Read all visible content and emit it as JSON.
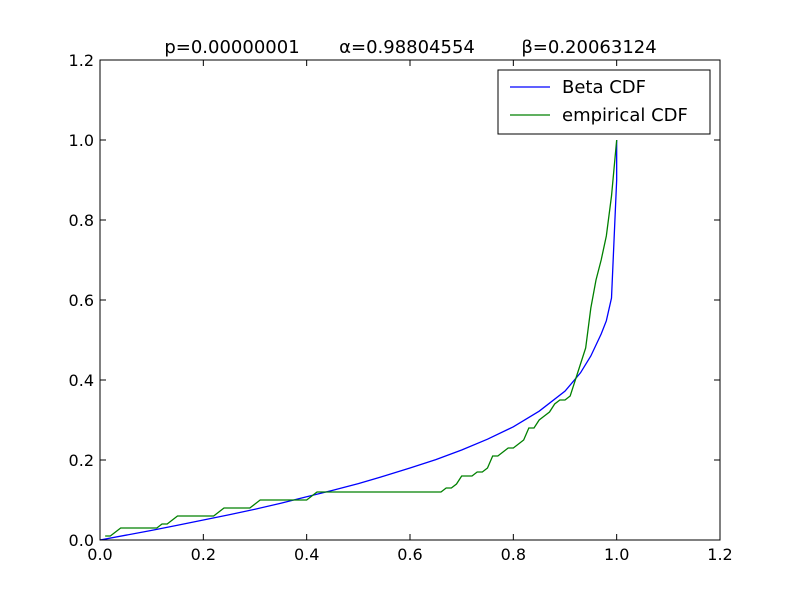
{
  "chart_data": {
    "type": "line",
    "title_parts": [
      "p=0.00000001",
      "α=0.98804554",
      "β=0.20063124"
    ],
    "xlabel": "",
    "ylabel": "",
    "xlim": [
      0.0,
      1.2
    ],
    "ylim": [
      0.0,
      1.2
    ],
    "x_ticks": [
      0.0,
      0.2,
      0.4,
      0.6,
      0.8,
      1.0,
      1.2
    ],
    "x_tick_labels": [
      "0.0",
      "0.2",
      "0.4",
      "0.6",
      "0.8",
      "1.0",
      "1.2"
    ],
    "y_ticks": [
      0.0,
      0.2,
      0.4,
      0.6,
      0.8,
      1.0,
      1.2
    ],
    "y_tick_labels": [
      "0.0",
      "0.2",
      "0.4",
      "0.6",
      "0.8",
      "1.0",
      "1.2"
    ],
    "grid": false,
    "legend_position": "top-right",
    "series": [
      {
        "name": "Beta CDF",
        "color": "#0000ff",
        "x": [
          0.0,
          0.05,
          0.1,
          0.15,
          0.2,
          0.25,
          0.3,
          0.35,
          0.4,
          0.45,
          0.5,
          0.55,
          0.6,
          0.65,
          0.7,
          0.75,
          0.8,
          0.85,
          0.9,
          0.93,
          0.95,
          0.97,
          0.98,
          0.99,
          1.0,
          1.0
        ],
        "y": [
          0.0,
          0.012,
          0.024,
          0.037,
          0.05,
          0.063,
          0.077,
          0.092,
          0.108,
          0.124,
          0.141,
          0.16,
          0.18,
          0.201,
          0.225,
          0.252,
          0.283,
          0.322,
          0.372,
          0.418,
          0.46,
          0.515,
          0.548,
          0.605,
          0.9,
          1.0
        ]
      },
      {
        "name": "empirical CDF",
        "color": "#008000",
        "x": [
          0.01,
          0.02,
          0.03,
          0.04,
          0.11,
          0.12,
          0.13,
          0.14,
          0.15,
          0.22,
          0.23,
          0.24,
          0.29,
          0.3,
          0.31,
          0.4,
          0.41,
          0.42,
          0.66,
          0.67,
          0.68,
          0.69,
          0.7,
          0.71,
          0.72,
          0.73,
          0.74,
          0.75,
          0.76,
          0.77,
          0.78,
          0.79,
          0.8,
          0.81,
          0.82,
          0.83,
          0.84,
          0.85,
          0.86,
          0.87,
          0.88,
          0.89,
          0.9,
          0.91,
          0.92,
          0.93,
          0.94,
          0.95,
          0.96,
          0.97,
          0.98,
          0.99,
          1.0
        ],
        "y": [
          0.01,
          0.01,
          0.02,
          0.03,
          0.03,
          0.04,
          0.04,
          0.05,
          0.06,
          0.06,
          0.07,
          0.08,
          0.08,
          0.09,
          0.1,
          0.1,
          0.11,
          0.12,
          0.12,
          0.13,
          0.13,
          0.14,
          0.16,
          0.16,
          0.16,
          0.17,
          0.17,
          0.18,
          0.21,
          0.21,
          0.22,
          0.23,
          0.23,
          0.24,
          0.25,
          0.28,
          0.28,
          0.3,
          0.31,
          0.32,
          0.34,
          0.35,
          0.35,
          0.36,
          0.4,
          0.44,
          0.48,
          0.58,
          0.65,
          0.7,
          0.76,
          0.86,
          1.0
        ]
      }
    ]
  }
}
